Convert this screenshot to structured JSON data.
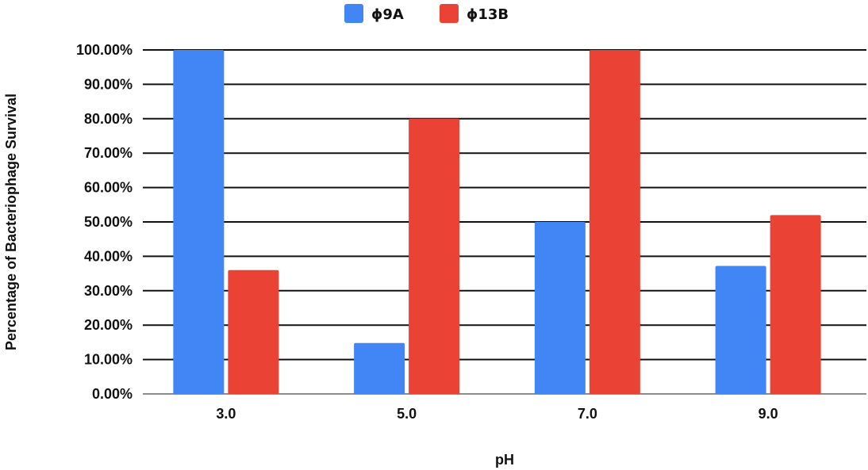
{
  "chart_data": {
    "type": "bar",
    "categories": [
      "3.0",
      "5.0",
      "7.0",
      "9.0"
    ],
    "series": [
      {
        "name": "ϕ9A",
        "values": [
          100.0,
          14.8,
          50.0,
          37.2
        ],
        "color": "#4285f4"
      },
      {
        "name": "ϕ13B",
        "values": [
          36.0,
          80.0,
          100.0,
          52.0
        ],
        "color": "#ea4335"
      }
    ],
    "xlabel": "pH",
    "ylabel": "Percentage of Bacteriophage Survival",
    "ylim": [
      0,
      100
    ],
    "yticks": [
      0,
      10,
      20,
      30,
      40,
      50,
      60,
      70,
      80,
      90,
      100
    ],
    "ytick_labels": [
      "0.00%",
      "10.00%",
      "20.00%",
      "30.00%",
      "40.00%",
      "50.00%",
      "60.00%",
      "70.00%",
      "80.00%",
      "90.00%",
      "100.00%"
    ],
    "grid": true,
    "legend_position": "top"
  }
}
